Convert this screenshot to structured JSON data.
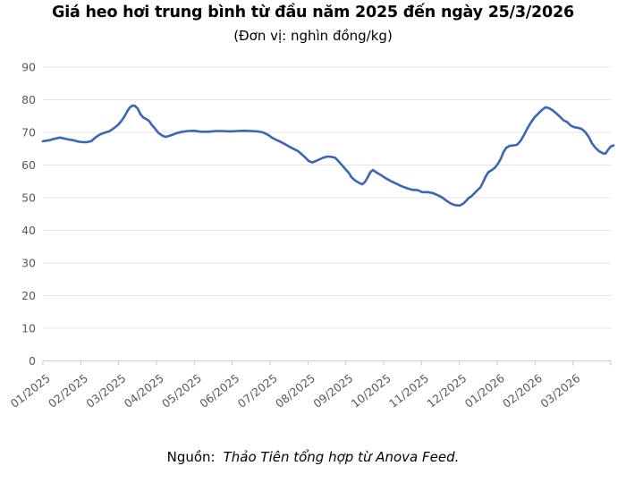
{
  "header": {
    "title": "Giá heo hơi trung bình từ đầu năm 2025 đến ngày 25/3/2026",
    "subtitle": "(Đơn vị: nghìn đồng/kg)"
  },
  "footer": {
    "source_label": "Nguồn:",
    "source_text": "Thảo Tiên tổng hợp từ Anova Feed."
  },
  "chart_data": {
    "type": "line",
    "title": "Giá heo hơi trung bình từ đầu năm 2025 đến ngày 25/3/2026",
    "unit": "nghìn đồng/kg",
    "series_name": "Giá heo hơi trung bình",
    "x_tick_labels": [
      "01/2025",
      "02/2025",
      "03/2025",
      "04/2025",
      "05/2025",
      "06/2025",
      "07/2025",
      "08/2025",
      "09/2025",
      "10/2025",
      "11/2025",
      "12/2025",
      "01/2026",
      "02/2026",
      "03/2026"
    ],
    "x_total_months": 15,
    "y_ticks": [
      0,
      10,
      20,
      30,
      40,
      50,
      60,
      70,
      80,
      90
    ],
    "ylim": [
      0,
      90
    ],
    "grid": true,
    "legend": "none",
    "line_color": "#3d65b4",
    "grid_color": "#e4e4e4",
    "axis_color": "#c9c9c9",
    "label_color": "#595959",
    "points": [
      [
        0.0,
        67.3
      ],
      [
        0.165,
        67.6
      ],
      [
        0.331,
        68.1
      ],
      [
        0.449,
        68.4
      ],
      [
        0.567,
        68.1
      ],
      [
        0.685,
        67.8
      ],
      [
        0.803,
        67.6
      ],
      [
        0.921,
        67.2
      ],
      [
        1.039,
        67.0
      ],
      [
        1.158,
        67.0
      ],
      [
        1.276,
        67.3
      ],
      [
        1.394,
        68.5
      ],
      [
        1.512,
        69.4
      ],
      [
        1.63,
        69.9
      ],
      [
        1.748,
        70.3
      ],
      [
        1.866,
        71.2
      ],
      [
        1.984,
        72.3
      ],
      [
        2.079,
        73.6
      ],
      [
        2.15,
        74.8
      ],
      [
        2.221,
        76.3
      ],
      [
        2.292,
        77.6
      ],
      [
        2.362,
        78.2
      ],
      [
        2.433,
        78.1
      ],
      [
        2.504,
        77.3
      ],
      [
        2.575,
        75.6
      ],
      [
        2.646,
        74.6
      ],
      [
        2.74,
        74.0
      ],
      [
        2.811,
        73.4
      ],
      [
        2.882,
        72.2
      ],
      [
        2.953,
        71.3
      ],
      [
        3.048,
        69.9
      ],
      [
        3.142,
        69.1
      ],
      [
        3.237,
        68.6
      ],
      [
        3.331,
        68.9
      ],
      [
        3.426,
        69.3
      ],
      [
        3.544,
        69.8
      ],
      [
        3.686,
        70.2
      ],
      [
        3.827,
        70.4
      ],
      [
        3.993,
        70.5
      ],
      [
        4.182,
        70.2
      ],
      [
        4.371,
        70.2
      ],
      [
        4.56,
        70.4
      ],
      [
        4.749,
        70.4
      ],
      [
        4.938,
        70.3
      ],
      [
        5.127,
        70.4
      ],
      [
        5.316,
        70.5
      ],
      [
        5.505,
        70.4
      ],
      [
        5.67,
        70.3
      ],
      [
        5.812,
        70.0
      ],
      [
        5.954,
        69.2
      ],
      [
        6.048,
        68.4
      ],
      [
        6.166,
        67.7
      ],
      [
        6.261,
        67.2
      ],
      [
        6.379,
        66.5
      ],
      [
        6.497,
        65.7
      ],
      [
        6.615,
        65.0
      ],
      [
        6.733,
        64.3
      ],
      [
        6.827,
        63.4
      ],
      [
        6.922,
        62.4
      ],
      [
        7.016,
        61.3
      ],
      [
        7.111,
        60.8
      ],
      [
        7.205,
        61.2
      ],
      [
        7.299,
        61.7
      ],
      [
        7.394,
        62.2
      ],
      [
        7.512,
        62.6
      ],
      [
        7.63,
        62.5
      ],
      [
        7.725,
        62.2
      ],
      [
        7.796,
        61.3
      ],
      [
        7.89,
        60.1
      ],
      [
        7.985,
        58.8
      ],
      [
        8.079,
        57.6
      ],
      [
        8.15,
        56.3
      ],
      [
        8.245,
        55.3
      ],
      [
        8.339,
        54.6
      ],
      [
        8.434,
        54.1
      ],
      [
        8.505,
        54.8
      ],
      [
        8.576,
        56.2
      ],
      [
        8.647,
        57.8
      ],
      [
        8.718,
        58.5
      ],
      [
        8.812,
        57.7
      ],
      [
        8.93,
        56.9
      ],
      [
        9.048,
        56.0
      ],
      [
        9.19,
        55.1
      ],
      [
        9.332,
        54.3
      ],
      [
        9.474,
        53.5
      ],
      [
        9.615,
        52.9
      ],
      [
        9.757,
        52.4
      ],
      [
        9.899,
        52.3
      ],
      [
        10.017,
        51.7
      ],
      [
        10.159,
        51.7
      ],
      [
        10.301,
        51.4
      ],
      [
        10.419,
        50.8
      ],
      [
        10.537,
        50.1
      ],
      [
        10.655,
        49.1
      ],
      [
        10.773,
        48.2
      ],
      [
        10.891,
        47.7
      ],
      [
        11.009,
        47.6
      ],
      [
        11.104,
        48.2
      ],
      [
        11.175,
        49.0
      ],
      [
        11.246,
        49.9
      ],
      [
        11.317,
        50.4
      ],
      [
        11.388,
        51.2
      ],
      [
        11.458,
        52.1
      ],
      [
        11.553,
        53.1
      ],
      [
        11.624,
        54.7
      ],
      [
        11.695,
        56.5
      ],
      [
        11.766,
        57.8
      ],
      [
        11.86,
        58.5
      ],
      [
        11.931,
        59.1
      ],
      [
        12.026,
        60.5
      ],
      [
        12.096,
        62.0
      ],
      [
        12.167,
        64.0
      ],
      [
        12.238,
        65.3
      ],
      [
        12.333,
        65.9
      ],
      [
        12.427,
        66.0
      ],
      [
        12.522,
        66.2
      ],
      [
        12.616,
        67.4
      ],
      [
        12.711,
        69.3
      ],
      [
        12.805,
        71.4
      ],
      [
        12.9,
        73.2
      ],
      [
        12.994,
        74.7
      ],
      [
        13.089,
        75.8
      ],
      [
        13.183,
        76.9
      ],
      [
        13.277,
        77.7
      ],
      [
        13.372,
        77.4
      ],
      [
        13.466,
        76.7
      ],
      [
        13.561,
        75.8
      ],
      [
        13.655,
        74.8
      ],
      [
        13.75,
        73.7
      ],
      [
        13.844,
        73.2
      ],
      [
        13.939,
        72.1
      ],
      [
        14.033,
        71.6
      ],
      [
        14.128,
        71.4
      ],
      [
        14.222,
        71.1
      ],
      [
        14.317,
        70.2
      ],
      [
        14.411,
        68.7
      ],
      [
        14.506,
        66.6
      ],
      [
        14.6,
        65.2
      ],
      [
        14.695,
        64.2
      ],
      [
        14.789,
        63.6
      ],
      [
        14.86,
        63.5
      ],
      [
        14.931,
        64.7
      ],
      [
        15.002,
        65.7
      ],
      [
        15.073,
        66.0
      ]
    ]
  }
}
